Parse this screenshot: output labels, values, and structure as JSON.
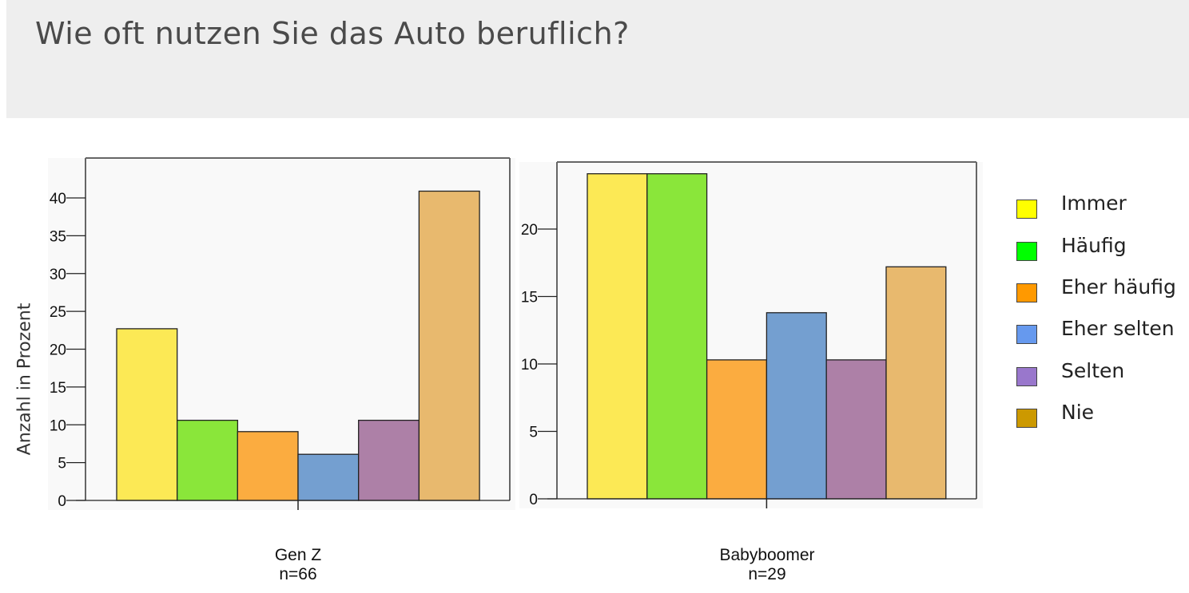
{
  "question": "Wie oft nutzen Sie das Auto beruflich?",
  "chart_data": {
    "type": "bar",
    "ylabel": "Anzahl in Prozent",
    "series": [
      {
        "name": "Immer",
        "legend_color": "#ffff00",
        "bar_color": "#fce955"
      },
      {
        "name": "Häufig",
        "legend_color": "#00ff00",
        "bar_color": "#8ae63a"
      },
      {
        "name": "Eher häufig",
        "legend_color": "#ff9900",
        "bar_color": "#fbac40"
      },
      {
        "name": "Eher selten",
        "legend_color": "#6699ee",
        "bar_color": "#749fd0"
      },
      {
        "name": "Selten",
        "legend_color": "#9977cc",
        "bar_color": "#ad80a7"
      },
      {
        "name": "Nie",
        "legend_color": "#cc9900",
        "bar_color": "#e8b96e"
      }
    ],
    "panels": [
      {
        "group": "Gen Z",
        "n": "n=66",
        "values": [
          22.7,
          10.6,
          9.1,
          6.1,
          10.6,
          40.9
        ],
        "ylim": [
          0,
          45
        ],
        "yticks": [
          0,
          5,
          10,
          15,
          20,
          25,
          30,
          35,
          40
        ]
      },
      {
        "group": "Babyboomer",
        "n": "n=29",
        "values": [
          24.1,
          24.1,
          10.3,
          13.8,
          10.3,
          17.2
        ],
        "ylim": [
          0,
          25
        ],
        "yticks": [
          0,
          5,
          10,
          15,
          20
        ]
      }
    ]
  }
}
